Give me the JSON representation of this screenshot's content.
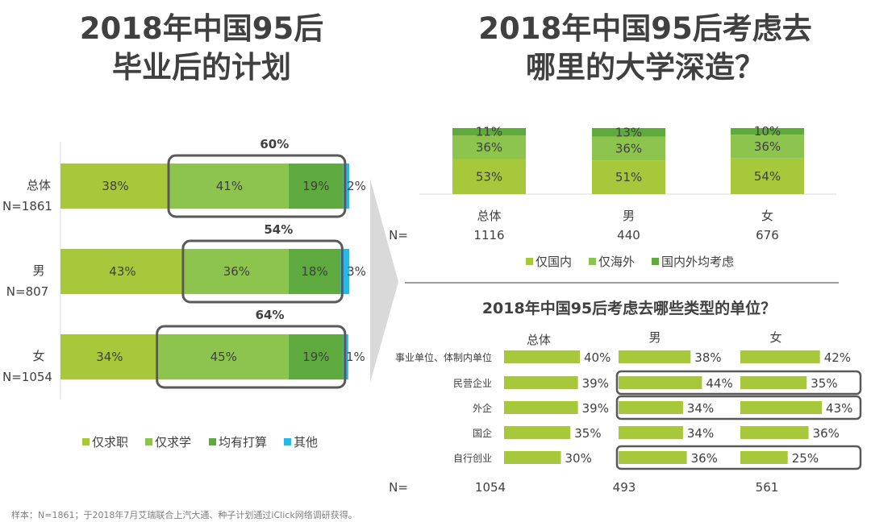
{
  "titles": {
    "left": [
      "2018年中国95后",
      "毕业后的计划"
    ],
    "right": [
      "2018年中国95后考虑去",
      "哪里的大学深造？"
    ],
    "unit_chart": "2018年中国95后考虑去哪些类型的单位？"
  },
  "footnote": "样本：N=1861；于2018年7月艾瑞联合上汽大通、种子计划通过iClick网络调研获得。",
  "colors": {
    "job": "#a6c83a",
    "study": "#8dc44e",
    "both": "#5faa3e",
    "other": "#29b7e8",
    "domestic": "#a6c83a",
    "abroad": "#8dc44e",
    "both_dest": "#5faa3e",
    "unit_bar": "#a6c83a",
    "highlight_box": "#595959"
  },
  "chart_data": [
    {
      "type": "bar",
      "orientation": "horizontal-stacked",
      "categories": [
        "总体",
        "男",
        "女"
      ],
      "sample_sizes": [
        "N=1861",
        "N=807",
        "N=1054"
      ],
      "series": [
        {
          "name": "仅求职",
          "values": [
            38,
            43,
            34
          ]
        },
        {
          "name": "仅求学",
          "values": [
            41,
            36,
            45
          ]
        },
        {
          "name": "均有打算",
          "values": [
            19,
            18,
            19
          ]
        },
        {
          "name": "其他",
          "values": [
            2,
            3,
            1
          ]
        }
      ],
      "highlight_totals": [
        "60%",
        "54%",
        "64%"
      ],
      "legend_position": "bottom"
    },
    {
      "type": "bar",
      "orientation": "vertical-stacked",
      "categories": [
        "总体",
        "男",
        "女"
      ],
      "n_label": "N=",
      "n_values": [
        "1116",
        "440",
        "676"
      ],
      "series": [
        {
          "name": "仅国内",
          "values": [
            53,
            51,
            54
          ]
        },
        {
          "name": "仅海外",
          "values": [
            36,
            36,
            36
          ]
        },
        {
          "name": "国内外均考虑",
          "values": [
            11,
            13,
            10
          ]
        }
      ],
      "legend_position": "bottom"
    },
    {
      "type": "bar",
      "orientation": "horizontal-grouped",
      "title": "2018年中国95后考虑去哪些类型的单位？",
      "categories": [
        "事业单位、体制内单位",
        "民营企业",
        "外企",
        "国企",
        "自行创业"
      ],
      "groups": [
        "总体",
        "男",
        "女"
      ],
      "n_label": "N=",
      "n_values": [
        "1054",
        "493",
        "561"
      ],
      "series": [
        {
          "name": "总体",
          "values": [
            40,
            39,
            39,
            35,
            30
          ]
        },
        {
          "name": "男",
          "values": [
            38,
            44,
            34,
            34,
            36
          ]
        },
        {
          "name": "女",
          "values": [
            42,
            35,
            43,
            36,
            25
          ]
        }
      ],
      "highlighted_rows": [
        "民营企业",
        "外企",
        "自行创业"
      ]
    }
  ]
}
